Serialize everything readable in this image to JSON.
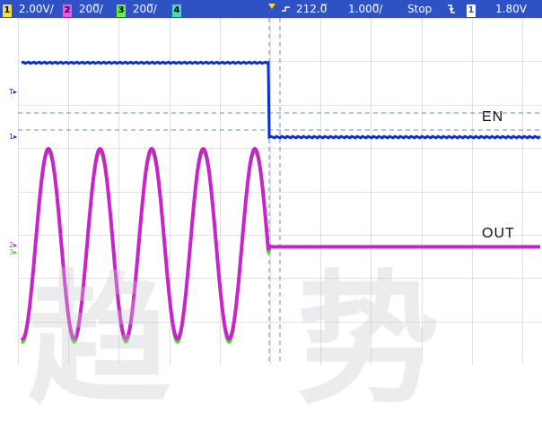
{
  "status_bar": {
    "ch1_num": "1",
    "ch1_scale": "2.00V/",
    "ch2_num": "2",
    "ch2_scale": "200̅/",
    "ch3_num": "3",
    "ch3_scale": "200̅/",
    "ch4_num": "4",
    "trigger_icon": "⮦",
    "time_offset": "212.0̅",
    "time_scale": "1.000̅/",
    "run_state": "Stop",
    "trigger_slope_icon": "῾",
    "trig_ch_num": "1",
    "trig_level": "1.80V"
  },
  "rail": {
    "trig_marker": "T",
    "ch1_marker": "1",
    "ch2_marker": "2",
    "ch3_marker": "3"
  },
  "labels": {
    "en": "EN",
    "out": "OUT"
  },
  "colors": {
    "status_bg": "#2e52c4",
    "ch1": "#0a2fd6",
    "ch2": "#cc22cc",
    "ch3": "#44dd22",
    "ch4": "#22ccaa",
    "grid": "#c8c8c8",
    "cursor": "#5b8fd6"
  },
  "icons": [
    "trigger-position-icon",
    "falling-edge-icon"
  ]
}
